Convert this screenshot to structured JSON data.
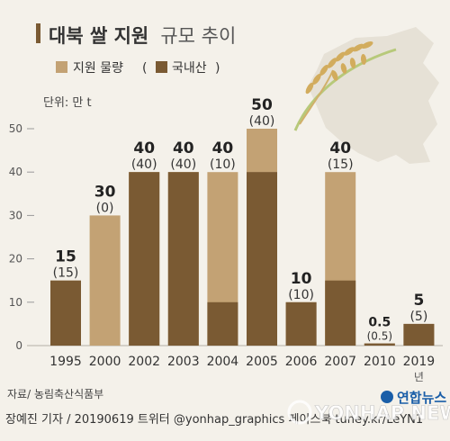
{
  "title": {
    "main": "대북 쌀 지원",
    "sub": "규모 추이"
  },
  "legend": {
    "total": "지원 물량",
    "domestic_paren_open": "(",
    "domestic": "국내산",
    "domestic_paren_close": ")"
  },
  "unit": "단위: 만 t",
  "year_suffix": "년",
  "source": "자료/ 농림축산식품부",
  "credit": "장예진 기자 / 20190619 트위터 @yonhap_graphics  페이스북 tuney.kr/LeYN1",
  "logo": "연합뉴스",
  "watermark": "YONHAP NEWS",
  "colors": {
    "total": "#c3a274",
    "domestic": "#7a5a33",
    "background": "#f4f1ea"
  },
  "chart_data": {
    "type": "bar",
    "categories": [
      "1995",
      "2000",
      "2002",
      "2003",
      "2004",
      "2005",
      "2006",
      "2007",
      "2010",
      "2019"
    ],
    "series": [
      {
        "name": "지원 물량",
        "values": [
          15,
          30,
          40,
          40,
          40,
          50,
          10,
          40,
          0.5,
          5
        ]
      },
      {
        "name": "국내산",
        "values": [
          15,
          0,
          40,
          40,
          10,
          40,
          10,
          15,
          0.5,
          5
        ]
      }
    ],
    "value_labels": [
      "15",
      "30",
      "40",
      "40",
      "40",
      "50",
      "10",
      "40",
      "0.5",
      "5"
    ],
    "domestic_labels": [
      "(15)",
      "(0)",
      "(40)",
      "(40)",
      "(10)",
      "(40)",
      "(10)",
      "(15)",
      "(0.5)",
      "(5)"
    ],
    "yticks": [
      0,
      10,
      20,
      30,
      40,
      50
    ],
    "ylim": [
      0,
      50
    ],
    "title": "대북 쌀 지원 규모 추이",
    "ylabel": "단위: 만 t",
    "grid": false,
    "legend_position": "top-left"
  }
}
